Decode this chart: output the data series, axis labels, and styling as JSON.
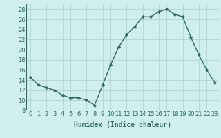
{
  "x": [
    0,
    1,
    2,
    3,
    4,
    5,
    6,
    7,
    8,
    9,
    10,
    11,
    12,
    13,
    14,
    15,
    16,
    17,
    18,
    19,
    20,
    21,
    22,
    23
  ],
  "y": [
    14.5,
    13.0,
    12.5,
    12.0,
    11.0,
    10.5,
    10.5,
    10.0,
    9.0,
    13.0,
    17.0,
    20.5,
    23.0,
    24.5,
    26.5,
    26.5,
    27.5,
    28.0,
    27.0,
    26.5,
    22.5,
    19.0,
    16.0,
    13.5
  ],
  "line_color": "#2d6b5e",
  "marker": "D",
  "markersize": 2.2,
  "linewidth": 1.0,
  "xlabel": "Humidex (Indice chaleur)",
  "xlim": [
    -0.5,
    23.5
  ],
  "ylim": [
    8,
    29
  ],
  "yticks": [
    8,
    10,
    12,
    14,
    16,
    18,
    20,
    22,
    24,
    26,
    28
  ],
  "xticks": [
    0,
    1,
    2,
    3,
    4,
    5,
    6,
    7,
    8,
    9,
    10,
    11,
    12,
    13,
    14,
    15,
    16,
    17,
    18,
    19,
    20,
    21,
    22,
    23
  ],
  "xtick_labels": [
    "0",
    "1",
    "2",
    "3",
    "4",
    "5",
    "6",
    "7",
    "8",
    "9",
    "10",
    "11",
    "12",
    "13",
    "14",
    "15",
    "16",
    "17",
    "18",
    "19",
    "20",
    "21",
    "22",
    "23"
  ],
  "bg_color": "#d0eeee",
  "grid_color": "#b0cccc",
  "font_color": "#2d6b5e",
  "xlabel_fontsize": 7,
  "tick_fontsize": 6,
  "title": ""
}
